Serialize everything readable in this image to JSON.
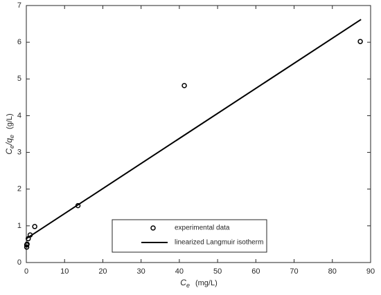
{
  "chart_data": {
    "type": "scatter",
    "x_label": [
      "C",
      "e",
      "(mg/L)"
    ],
    "y_label": [
      "C",
      "e",
      "/q",
      "e",
      "(g/L)"
    ],
    "xlim": [
      0,
      90
    ],
    "xticks": [
      0,
      10,
      20,
      30,
      40,
      50,
      60,
      70,
      80,
      90
    ],
    "ylim": [
      0,
      7
    ],
    "yticks": [
      0,
      1,
      2,
      3,
      4,
      5,
      6,
      7
    ],
    "grid": false,
    "legend": "bottom-center",
    "series": [
      {
        "name": "experimental data",
        "type": "scatter",
        "color": "#000000",
        "x": [
          0.1,
          0.1,
          0.2,
          0.5,
          1.0,
          2.2,
          13.5,
          41.3,
          87.3
        ],
        "values": [
          0.42,
          0.48,
          0.5,
          0.65,
          0.75,
          0.98,
          1.55,
          4.82,
          6.02
        ]
      },
      {
        "name": "linearized Langmuir isotherm",
        "type": "line",
        "color": "#000000",
        "x": [
          0,
          87.5
        ],
        "values": [
          0.65,
          6.62
        ]
      }
    ]
  }
}
